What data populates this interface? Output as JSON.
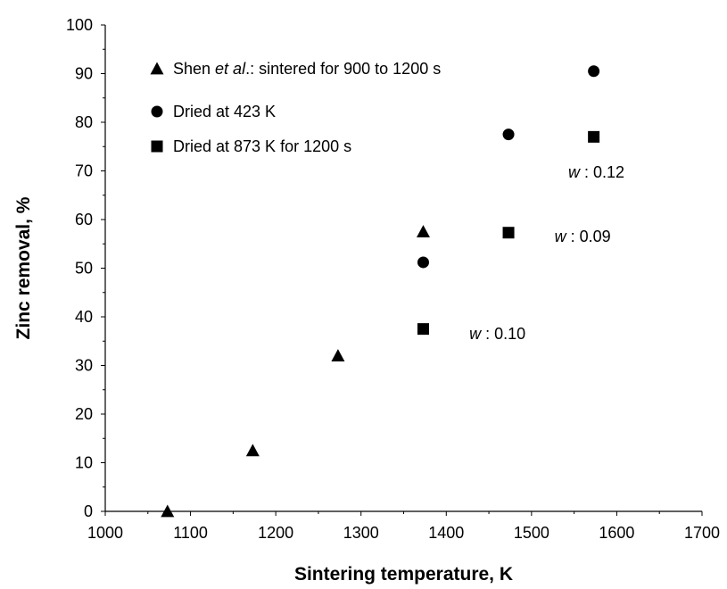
{
  "chart_data": {
    "type": "scatter",
    "title": "",
    "xlabel": "Sintering temperature, K",
    "ylabel": "Zinc removal, %",
    "xlim": [
      1000,
      1700
    ],
    "ylim": [
      0,
      100
    ],
    "x_ticks": [
      "1000",
      "1100",
      "1200",
      "1300",
      "1400",
      "1500",
      "1600",
      "1700"
    ],
    "y_ticks": [
      "0",
      "10",
      "20",
      "30",
      "40",
      "50",
      "60",
      "70",
      "80",
      "90",
      "100"
    ],
    "grid": false,
    "legend_position": "top-left inside",
    "series": [
      {
        "name": "Shen et al.: sintered for 900 to 1200 s",
        "legend_parts": [
          "Shen ",
          "et al",
          ".: sintered for 900 to 1200 s"
        ],
        "marker": "triangle",
        "points": [
          [
            1073,
            0
          ],
          [
            1173,
            12.5
          ],
          [
            1273,
            32
          ],
          [
            1373,
            57.5
          ]
        ]
      },
      {
        "name": "Dried at 423 K",
        "marker": "circle",
        "points": [
          [
            1373,
            51.2
          ],
          [
            1473,
            77.5
          ],
          [
            1573,
            90.5
          ]
        ]
      },
      {
        "name": "Dried at 873 K for 1200 s",
        "marker": "square",
        "points": [
          [
            1373,
            37.5
          ],
          [
            1473,
            57.3
          ],
          [
            1573,
            77
          ]
        ]
      }
    ],
    "annotations": [
      {
        "var": "w",
        "text": " : 0.10",
        "x": 1427,
        "y": 36.5
      },
      {
        "var": "w",
        "text": " : 0.09",
        "x": 1527,
        "y": 56.5
      },
      {
        "var": "w",
        "text": " : 0.12",
        "x": 1543,
        "y": 69.7
      }
    ],
    "colors": {
      "marker": "#000000",
      "axis": "#000000",
      "background": "#ffffff"
    }
  }
}
